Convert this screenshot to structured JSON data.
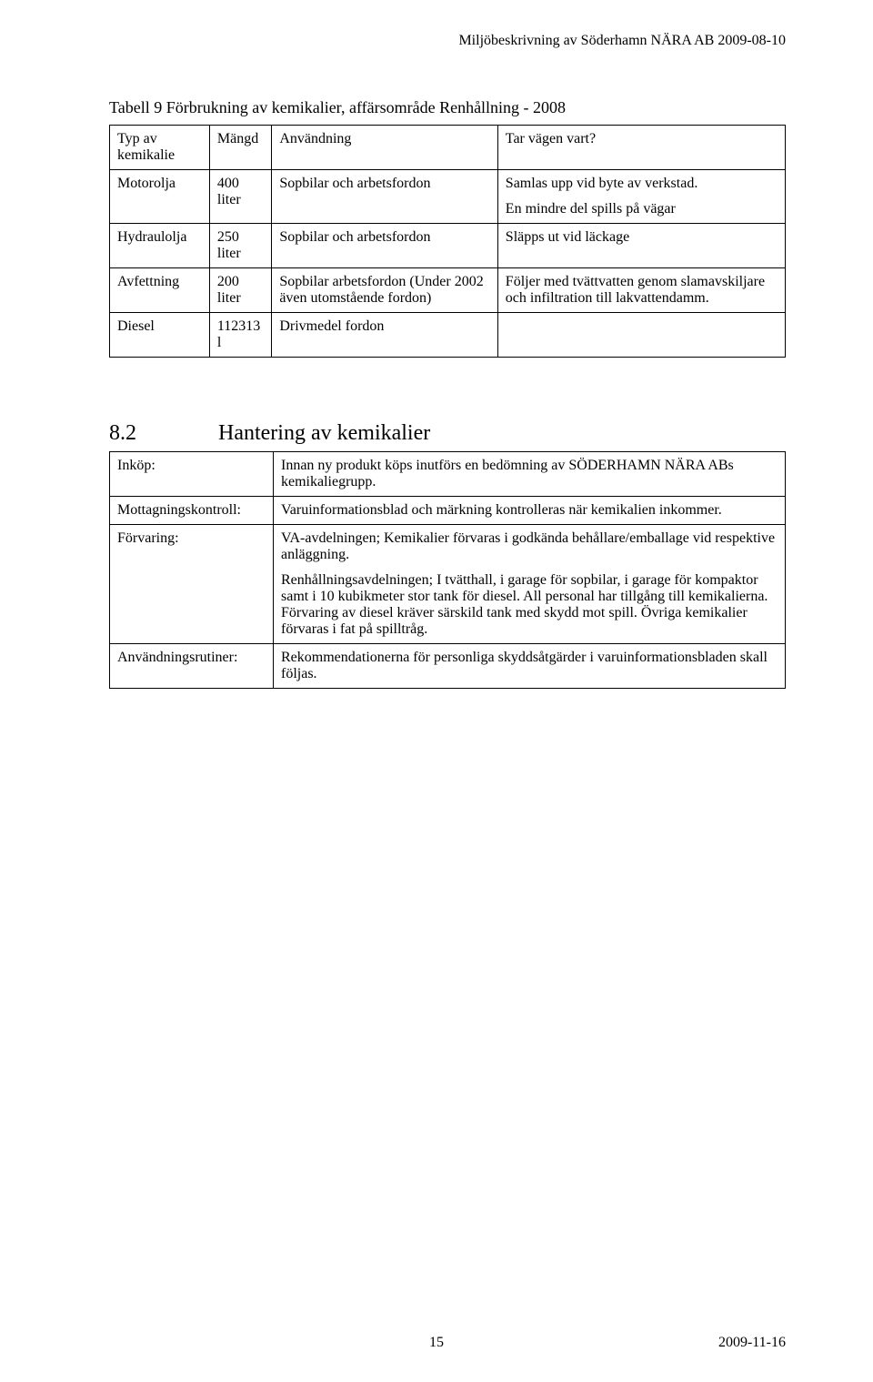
{
  "header": {
    "title": "Miljöbeskrivning av Söderhamn NÄRA AB 2009-08-10"
  },
  "table1": {
    "caption": "Tabell 9 Förbrukning av kemikalier, affärsområde Renhållning - 2008",
    "columns": [
      "Typ av kemikalie",
      "Mängd",
      "Användning",
      "Tar vägen vart?"
    ],
    "rows": [
      {
        "c0": "Motorolja",
        "c1": "400 liter",
        "c2": "Sopbilar och arbetsfordon",
        "c3a": "Samlas upp vid byte av verkstad.",
        "c3b": "En mindre del spills på vägar"
      },
      {
        "c0": "Hydraulolja",
        "c1": "250 liter",
        "c2": "Sopbilar och arbetsfordon",
        "c3": "Släpps ut vid läckage"
      },
      {
        "c0": "Avfettning",
        "c1": "200 liter",
        "c2": "Sopbilar arbetsfordon (Under 2002 även utomstående fordon)",
        "c3": "Följer med tvättvatten genom slamavskiljare och infiltration till lakvattendamm."
      },
      {
        "c0": "Diesel",
        "c1": "112313 l",
        "c2": "Drivmedel fordon",
        "c3": ""
      }
    ]
  },
  "section82": {
    "number": "8.2",
    "title": "Hantering av kemikalier",
    "rows": {
      "inkop": {
        "label": "Inköp:",
        "text": "Innan ny produkt köps inutförs en bedömning av SÖDERHAMN NÄRA ABs kemikaliegrupp."
      },
      "mottag": {
        "label": "Mottagningskontroll:",
        "text": "Varuinformationsblad och märkning kontrolleras när kemikalien inkommer."
      },
      "forvaring": {
        "label": "Förvaring:",
        "text1": "VA-avdelningen; Kemikalier förvaras i godkända behållare/emballage vid respektive anläggning.",
        "text2": "Renhållningsavdelningen; I tvätthall, i garage för sopbilar, i garage för kompaktor samt i 10 kubikmeter stor tank för diesel. All personal har tillgång till kemikalierna. Förvaring av diesel kräver särskild tank med skydd mot spill. Övriga kemikalier förvaras i fat på spilltråg."
      },
      "anvandning": {
        "label": "Användningsrutiner:",
        "text": "Rekommendationerna för personliga skyddsåtgärder i varuinformationsbladen skall följas."
      }
    }
  },
  "footer": {
    "page": "15",
    "date": "2009-11-16"
  }
}
